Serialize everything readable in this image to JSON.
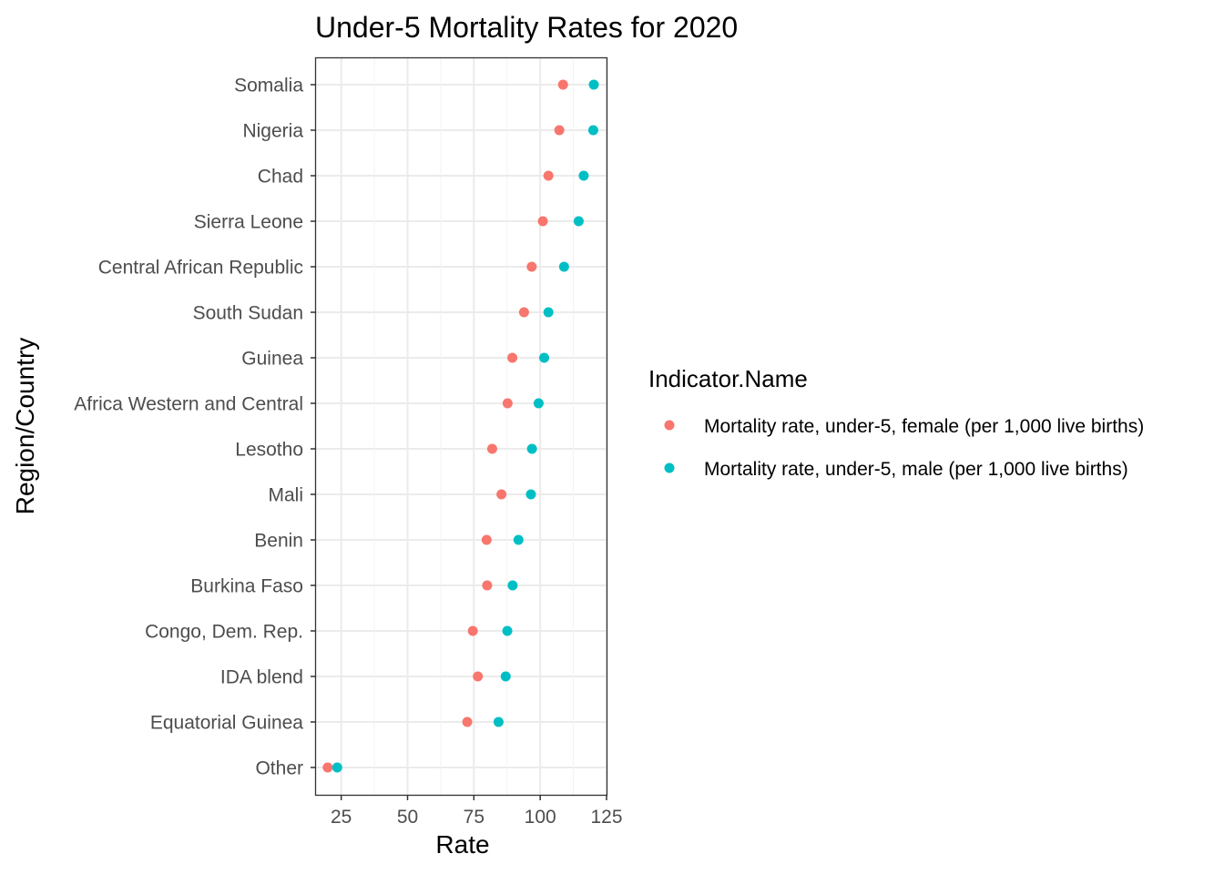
{
  "chart_data": {
    "type": "scatter",
    "title": "Under-5 Mortality Rates for 2020",
    "xlabel": "Rate",
    "ylabel": "Region/Country",
    "xlim": [
      15.5,
      125
    ],
    "x_ticks": [
      25,
      50,
      75,
      100,
      125
    ],
    "grid": true,
    "legend_position": "right",
    "legend_title": "Indicator.Name",
    "categories": [
      "Somalia",
      "Nigeria",
      "Chad",
      "Sierra Leone",
      "Central African Republic",
      "South Sudan",
      "Guinea",
      "Africa Western and Central",
      "Lesotho",
      "Mali",
      "Benin",
      "Burkina Faso",
      "Congo, Dem. Rep.",
      "IDA blend",
      "Equatorial Guinea",
      "Other"
    ],
    "series": [
      {
        "name": "Mortality rate, under-5, female (per 1,000 live births)",
        "color": "#f8766d",
        "values": [
          108.6,
          107.2,
          103.1,
          101.0,
          96.8,
          93.9,
          89.5,
          87.7,
          81.9,
          85.4,
          79.8,
          80.0,
          74.6,
          76.5,
          72.5,
          19.9
        ]
      },
      {
        "name": "Mortality rate, under-5, male (per 1,000 live births)",
        "color": "#00bfc4",
        "values": [
          120.2,
          120.0,
          116.4,
          114.5,
          109.0,
          103.1,
          101.5,
          99.4,
          96.9,
          96.5,
          91.8,
          89.6,
          87.6,
          87.0,
          84.3,
          23.5
        ]
      }
    ]
  }
}
